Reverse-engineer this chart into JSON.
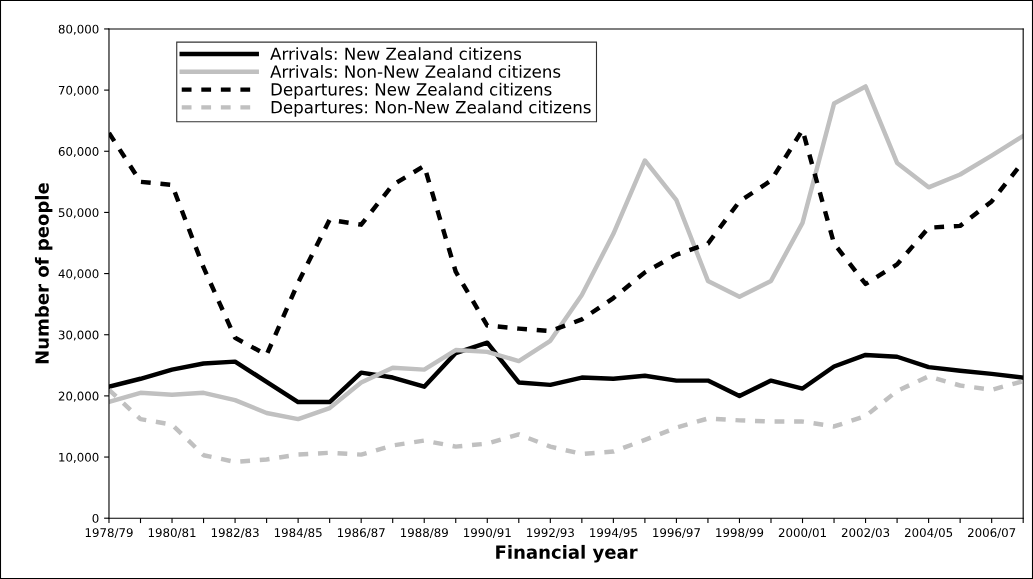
{
  "chart_data": {
    "type": "line",
    "xlabel": "Financial year",
    "ylabel": "Number of people",
    "categories": [
      "1978/79",
      null,
      "1980/81",
      null,
      "1982/83",
      null,
      "1984/85",
      null,
      "1986/87",
      null,
      "1988/89",
      null,
      "1990/91",
      null,
      "1992/93",
      null,
      "1994/95",
      null,
      "1996/97",
      null,
      "1998/99",
      null,
      "2000/01",
      null,
      "2002/03",
      null,
      "2004/05",
      null,
      "2006/07",
      null
    ],
    "series": [
      {
        "name": "Arrivals: New Zealand citizens",
        "color": "#000000",
        "line_style": "solid",
        "values": [
          21500,
          22800,
          24300,
          25300,
          25600,
          22300,
          19000,
          19000,
          23800,
          23000,
          21500,
          27000,
          28700,
          22200,
          21800,
          23000,
          22800,
          23300,
          22500,
          22500,
          20000,
          22500,
          21200,
          24800,
          26700,
          26400,
          24700,
          24100,
          23600,
          23000
        ]
      },
      {
        "name": "Arrivals: Non-New Zealand citizens",
        "color": "#c0c0c0",
        "line_style": "solid",
        "values": [
          19000,
          20500,
          20200,
          20500,
          19300,
          17200,
          16200,
          18000,
          22200,
          24600,
          24300,
          27500,
          27200,
          25700,
          29000,
          36500,
          46500,
          58500,
          52000,
          38800,
          36200,
          38800,
          48300,
          67800,
          70600,
          58100,
          54100,
          56200,
          59300,
          62500
        ]
      },
      {
        "name": "Departures: New Zealand citizens",
        "color": "#000000",
        "line_style": "dashed",
        "values": [
          63000,
          55000,
          54500,
          41000,
          29500,
          26700,
          38500,
          48800,
          48000,
          54500,
          57600,
          40300,
          31500,
          31000,
          30600,
          32500,
          36000,
          40200,
          43100,
          44900,
          51800,
          55200,
          63500,
          44900,
          38300,
          41500,
          47500,
          47800,
          51800,
          58300
        ]
      },
      {
        "name": "Departures: Non-New Zealand citizens",
        "color": "#c0c0c0",
        "line_style": "dashed",
        "values": [
          21000,
          16200,
          15300,
          10300,
          9200,
          9600,
          10400,
          10700,
          10400,
          11900,
          12700,
          11700,
          12200,
          13700,
          11700,
          10500,
          10900,
          12800,
          14800,
          16300,
          16000,
          15800,
          15800,
          15000,
          16700,
          20800,
          23200,
          21700,
          21000,
          22400
        ]
      }
    ],
    "ylim": [
      0,
      80000
    ],
    "yticks": [
      0,
      {
        "value": 10000,
        "label": "10,000"
      },
      {
        "value": 20000,
        "label": "20,000"
      },
      {
        "value": 30000,
        "label": "30,000"
      },
      {
        "value": 40000,
        "label": "40,000"
      },
      {
        "value": 50000,
        "label": "50,000"
      },
      {
        "value": 60000,
        "label": "60,000"
      },
      {
        "value": 70000,
        "label": "70,000"
      },
      {
        "value": 80000,
        "label": "80,000"
      }
    ],
    "legend": "top left",
    "grid": false
  }
}
